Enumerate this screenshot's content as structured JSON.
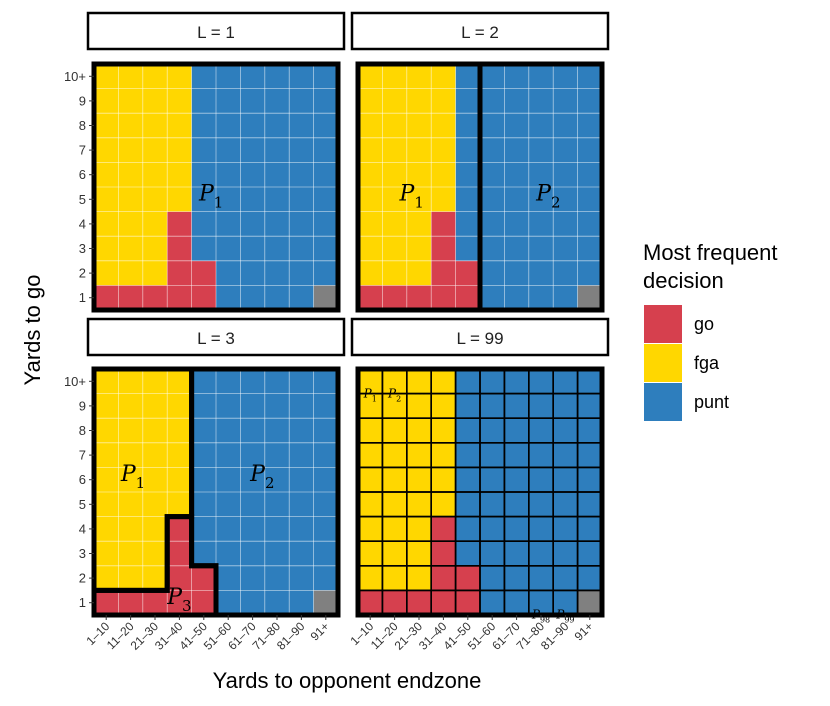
{
  "chart_data": {
    "type": "heatmap",
    "xlabel": "Yards to opponent endzone",
    "ylabel": "Yards to go",
    "x_categories": [
      "1–10",
      "11–20",
      "21–30",
      "31–40",
      "41–50",
      "51–60",
      "61–70",
      "71–80",
      "81–90",
      "91+"
    ],
    "y_categories": [
      "1",
      "2",
      "3",
      "4",
      "5",
      "6",
      "7",
      "8",
      "9",
      "10+"
    ],
    "legend": {
      "title_line1": "Most frequent",
      "title_line2": "decision",
      "position": "right",
      "entries": [
        {
          "key": "go",
          "label": "go",
          "color": "#D6404E"
        },
        {
          "key": "fga",
          "label": "fga",
          "color": "#FFD700"
        },
        {
          "key": "punt",
          "label": "punt",
          "color": "#2E7EBD"
        }
      ]
    },
    "na_color": "#808080",
    "grid": true,
    "decision_grid": [
      [
        "go",
        "go",
        "go",
        "go",
        "go",
        "punt",
        "punt",
        "punt",
        "punt",
        "na"
      ],
      [
        "fga",
        "fga",
        "fga",
        "go",
        "go",
        "punt",
        "punt",
        "punt",
        "punt",
        "punt"
      ],
      [
        "fga",
        "fga",
        "fga",
        "go",
        "punt",
        "punt",
        "punt",
        "punt",
        "punt",
        "punt"
      ],
      [
        "fga",
        "fga",
        "fga",
        "go",
        "punt",
        "punt",
        "punt",
        "punt",
        "punt",
        "punt"
      ],
      [
        "fga",
        "fga",
        "fga",
        "fga",
        "punt",
        "punt",
        "punt",
        "punt",
        "punt",
        "punt"
      ],
      [
        "fga",
        "fga",
        "fga",
        "fga",
        "punt",
        "punt",
        "punt",
        "punt",
        "punt",
        "punt"
      ],
      [
        "fga",
        "fga",
        "fga",
        "fga",
        "punt",
        "punt",
        "punt",
        "punt",
        "punt",
        "punt"
      ],
      [
        "fga",
        "fga",
        "fga",
        "fga",
        "punt",
        "punt",
        "punt",
        "punt",
        "punt",
        "punt"
      ],
      [
        "fga",
        "fga",
        "fga",
        "fga",
        "punt",
        "punt",
        "punt",
        "punt",
        "punt",
        "punt"
      ],
      [
        "fga",
        "fga",
        "fga",
        "fga",
        "punt",
        "punt",
        "punt",
        "punt",
        "punt",
        "punt"
      ]
    ],
    "panels": [
      {
        "title": "L = 1",
        "decisions": [
          [
            "go",
            "go",
            "go",
            "go",
            "go",
            "punt",
            "punt",
            "punt",
            "punt",
            "na"
          ],
          [
            "fga",
            "fga",
            "fga",
            "go",
            "go",
            "punt",
            "punt",
            "punt",
            "punt",
            "punt"
          ],
          [
            "fga",
            "fga",
            "fga",
            "go",
            "punt",
            "punt",
            "punt",
            "punt",
            "punt",
            "punt"
          ],
          [
            "fga",
            "fga",
            "fga",
            "go",
            "punt",
            "punt",
            "punt",
            "punt",
            "punt",
            "punt"
          ],
          [
            "fga",
            "fga",
            "fga",
            "fga",
            "punt",
            "punt",
            "punt",
            "punt",
            "punt",
            "punt"
          ],
          [
            "fga",
            "fga",
            "fga",
            "fga",
            "punt",
            "punt",
            "punt",
            "punt",
            "punt",
            "punt"
          ],
          [
            "fga",
            "fga",
            "fga",
            "fga",
            "punt",
            "punt",
            "punt",
            "punt",
            "punt",
            "punt"
          ],
          [
            "fga",
            "fga",
            "fga",
            "fga",
            "punt",
            "punt",
            "punt",
            "punt",
            "punt",
            "punt"
          ],
          [
            "fga",
            "fga",
            "fga",
            "fga",
            "punt",
            "punt",
            "punt",
            "punt",
            "punt",
            "punt"
          ],
          [
            "fga",
            "fga",
            "fga",
            "fga",
            "punt",
            "punt",
            "punt",
            "punt",
            "punt",
            "punt"
          ]
        ],
        "partitions": [
          {
            "cols": [
              1,
              10
            ],
            "rows": [
              1,
              10
            ]
          }
        ],
        "labels": [
          {
            "text": "P",
            "sub": "1",
            "col": 5.3,
            "row": 5.6
          }
        ]
      },
      {
        "title": "L = 2",
        "decisions": [
          [
            "go",
            "go",
            "go",
            "go",
            "go",
            "punt",
            "punt",
            "punt",
            "punt",
            "na"
          ],
          [
            "fga",
            "fga",
            "fga",
            "go",
            "go",
            "punt",
            "punt",
            "punt",
            "punt",
            "punt"
          ],
          [
            "fga",
            "fga",
            "fga",
            "go",
            "punt",
            "punt",
            "punt",
            "punt",
            "punt",
            "punt"
          ],
          [
            "fga",
            "fga",
            "fga",
            "go",
            "punt",
            "punt",
            "punt",
            "punt",
            "punt",
            "punt"
          ],
          [
            "fga",
            "fga",
            "fga",
            "fga",
            "punt",
            "punt",
            "punt",
            "punt",
            "punt",
            "punt"
          ],
          [
            "fga",
            "fga",
            "fga",
            "fga",
            "punt",
            "punt",
            "punt",
            "punt",
            "punt",
            "punt"
          ],
          [
            "fga",
            "fga",
            "fga",
            "fga",
            "punt",
            "punt",
            "punt",
            "punt",
            "punt",
            "punt"
          ],
          [
            "fga",
            "fga",
            "fga",
            "fga",
            "punt",
            "punt",
            "punt",
            "punt",
            "punt",
            "punt"
          ],
          [
            "fga",
            "fga",
            "fga",
            "fga",
            "punt",
            "punt",
            "punt",
            "punt",
            "punt",
            "punt"
          ],
          [
            "fga",
            "fga",
            "fga",
            "fga",
            "punt",
            "punt",
            "punt",
            "punt",
            "punt",
            "punt"
          ]
        ],
        "partitions": [
          {
            "cols": [
              1,
              5
            ],
            "rows": [
              1,
              10
            ]
          },
          {
            "cols": [
              6,
              10
            ],
            "rows": [
              1,
              10
            ]
          }
        ],
        "labels": [
          {
            "text": "P",
            "sub": "1",
            "col": 2.7,
            "row": 5.6
          },
          {
            "text": "P",
            "sub": "2",
            "col": 8.3,
            "row": 5.6
          }
        ]
      },
      {
        "title": "L = 3",
        "decisions": [
          [
            "go",
            "go",
            "go",
            "go",
            "go",
            "punt",
            "punt",
            "punt",
            "punt",
            "na"
          ],
          [
            "fga",
            "fga",
            "fga",
            "go",
            "go",
            "punt",
            "punt",
            "punt",
            "punt",
            "punt"
          ],
          [
            "fga",
            "fga",
            "fga",
            "go",
            "punt",
            "punt",
            "punt",
            "punt",
            "punt",
            "punt"
          ],
          [
            "fga",
            "fga",
            "fga",
            "go",
            "punt",
            "punt",
            "punt",
            "punt",
            "punt",
            "punt"
          ],
          [
            "fga",
            "fga",
            "fga",
            "fga",
            "punt",
            "punt",
            "punt",
            "punt",
            "punt",
            "punt"
          ],
          [
            "fga",
            "fga",
            "fga",
            "fga",
            "punt",
            "punt",
            "punt",
            "punt",
            "punt",
            "punt"
          ],
          [
            "fga",
            "fga",
            "fga",
            "fga",
            "punt",
            "punt",
            "punt",
            "punt",
            "punt",
            "punt"
          ],
          [
            "fga",
            "fga",
            "fga",
            "fga",
            "punt",
            "punt",
            "punt",
            "punt",
            "punt",
            "punt"
          ],
          [
            "fga",
            "fga",
            "fga",
            "fga",
            "punt",
            "punt",
            "punt",
            "punt",
            "punt",
            "punt"
          ],
          [
            "fga",
            "fga",
            "fga",
            "fga",
            "punt",
            "punt",
            "punt",
            "punt",
            "punt",
            "punt"
          ]
        ],
        "partitions": [
          {
            "polygon_cells": [
              [
                0,
                1.5
              ],
              [
                3,
                1.5
              ],
              [
                3,
                4.5
              ],
              [
                4,
                4.5
              ],
              [
                4,
                10.5
              ],
              [
                0,
                10.5
              ]
            ]
          },
          {
            "polygon_cells": [
              [
                4,
                10.5
              ],
              [
                10,
                10.5
              ],
              [
                10,
                0.5
              ],
              [
                5,
                0.5
              ],
              [
                5,
                2.5
              ],
              [
                4,
                2.5
              ]
            ]
          },
          {
            "polygon_cells": [
              [
                0,
                0.5
              ],
              [
                5,
                0.5
              ],
              [
                5,
                2.5
              ],
              [
                4,
                2.5
              ],
              [
                4,
                4.5
              ],
              [
                3,
                4.5
              ],
              [
                3,
                1.5
              ],
              [
                0,
                1.5
              ]
            ]
          }
        ],
        "labels": [
          {
            "text": "P",
            "sub": "1",
            "col": 2.1,
            "row": 6.6
          },
          {
            "text": "P",
            "sub": "2",
            "col": 7.4,
            "row": 6.6
          },
          {
            "text": "P",
            "sub": "3",
            "col": 4.0,
            "row": 1.6
          }
        ]
      },
      {
        "title": "L = 99",
        "decisions": [
          [
            "go",
            "go",
            "go",
            "go",
            "go",
            "punt",
            "punt",
            "punt",
            "punt",
            "na"
          ],
          [
            "fga",
            "fga",
            "fga",
            "go",
            "go",
            "punt",
            "punt",
            "punt",
            "punt",
            "punt"
          ],
          [
            "fga",
            "fga",
            "fga",
            "go",
            "punt",
            "punt",
            "punt",
            "punt",
            "punt",
            "punt"
          ],
          [
            "fga",
            "fga",
            "fga",
            "go",
            "punt",
            "punt",
            "punt",
            "punt",
            "punt",
            "punt"
          ],
          [
            "fga",
            "fga",
            "fga",
            "fga",
            "punt",
            "punt",
            "punt",
            "punt",
            "punt",
            "punt"
          ],
          [
            "fga",
            "fga",
            "fga",
            "fga",
            "punt",
            "punt",
            "punt",
            "punt",
            "punt",
            "punt"
          ],
          [
            "fga",
            "fga",
            "fga",
            "fga",
            "punt",
            "punt",
            "punt",
            "punt",
            "punt",
            "punt"
          ],
          [
            "fga",
            "fga",
            "fga",
            "fga",
            "punt",
            "punt",
            "punt",
            "punt",
            "punt",
            "punt"
          ],
          [
            "fga",
            "fga",
            "fga",
            "fga",
            "punt",
            "punt",
            "punt",
            "punt",
            "punt",
            "punt"
          ],
          [
            "fga",
            "fga",
            "fga",
            "fga",
            "punt",
            "punt",
            "punt",
            "punt",
            "punt",
            "punt"
          ]
        ],
        "partitions": "each-cell",
        "labels": [
          {
            "text": "P",
            "sub": "1",
            "col": 1,
            "row": 10
          },
          {
            "text": "P",
            "sub": "2",
            "col": 2,
            "row": 10
          },
          {
            "text": "⋯",
            "sub": "",
            "col": 3,
            "row": 10
          },
          {
            "text": "⋯",
            "sub": "",
            "col": 7,
            "row": 1
          },
          {
            "text": "P",
            "sub": "98",
            "col": 8,
            "row": 1
          },
          {
            "text": "P",
            "sub": "99",
            "col": 9,
            "row": 1
          }
        ]
      }
    ]
  }
}
